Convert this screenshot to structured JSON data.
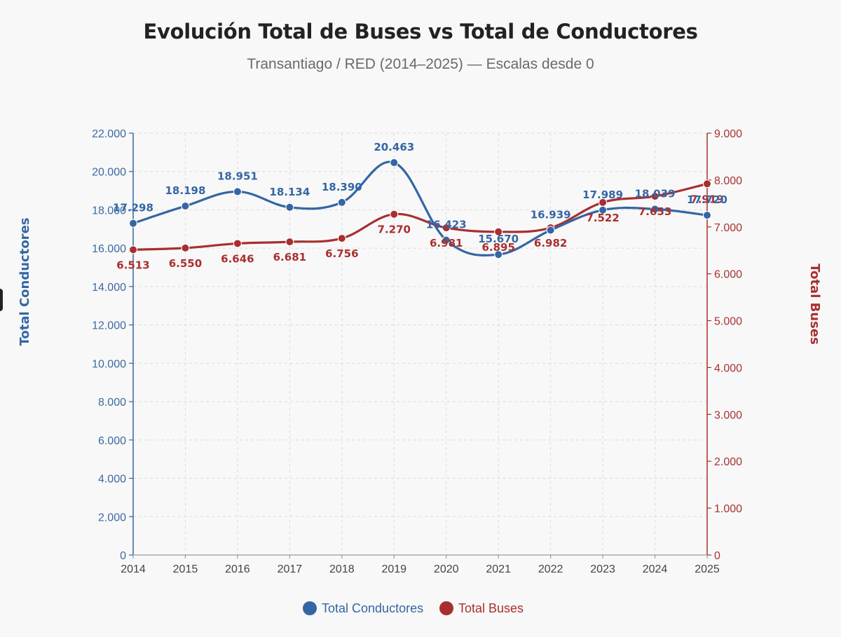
{
  "header": {
    "title": "Evolución Total de Buses vs Total de Conductores",
    "subtitle": "Transantiago / RED (2014–2025) — Escalas desde 0"
  },
  "chart_data": {
    "type": "line",
    "title": "Evolución Total de Buses vs Total de Conductores",
    "subtitle": "Transantiago / RED (2014–2025) — Escalas desde 0",
    "x": [
      2014,
      2015,
      2016,
      2017,
      2018,
      2019,
      2020,
      2021,
      2022,
      2023,
      2024,
      2025
    ],
    "x_tick_labels": [
      "2014",
      "2015",
      "2016",
      "2017",
      "2018",
      "2019",
      "2020",
      "2021",
      "2022",
      "2023",
      "2024",
      "2025"
    ],
    "y_left": {
      "label": "Total Conductores",
      "ylim": [
        0,
        22000
      ],
      "ticks": [
        0,
        2000,
        4000,
        6000,
        8000,
        10000,
        12000,
        14000,
        16000,
        18000,
        20000,
        22000
      ],
      "tick_labels": [
        "0",
        "2.000",
        "4.000",
        "6.000",
        "8.000",
        "10.000",
        "12.000",
        "14.000",
        "16.000",
        "18.000",
        "20.000",
        "22.000"
      ]
    },
    "y_right": {
      "label": "Total Buses",
      "ylim": [
        0,
        9000
      ],
      "ticks": [
        0,
        1000,
        2000,
        3000,
        4000,
        5000,
        6000,
        7000,
        8000,
        9000
      ],
      "tick_labels": [
        "0",
        "1.000",
        "2.000",
        "3.000",
        "4.000",
        "5.000",
        "6.000",
        "7.000",
        "8.000",
        "9.000"
      ]
    },
    "grid": true,
    "legend_position": "bottom-center",
    "series": [
      {
        "name": "Total Conductores",
        "axis": "left",
        "color": "#3466a4",
        "values": [
          17298,
          18198,
          18951,
          18134,
          18390,
          20463,
          16423,
          15670,
          16939,
          17989,
          18039,
          17720
        ],
        "labels": [
          "17.298",
          "18.198",
          "18.951",
          "18.134",
          "18.390",
          "20.463",
          "16.423",
          "15.670",
          "16.939",
          "17.989",
          "18.039",
          "17.720"
        ]
      },
      {
        "name": "Total Buses",
        "axis": "right",
        "color": "#a92f2f",
        "values": [
          6513,
          6550,
          6646,
          6681,
          6756,
          7270,
          6981,
          6895,
          6982,
          7522,
          7653,
          7919
        ],
        "labels": [
          "6.513",
          "6.550",
          "6.646",
          "6.681",
          "6.756",
          "7.270",
          "6.981",
          "6.895",
          "6.982",
          "7.522",
          "7.653",
          "7.919"
        ]
      }
    ]
  }
}
